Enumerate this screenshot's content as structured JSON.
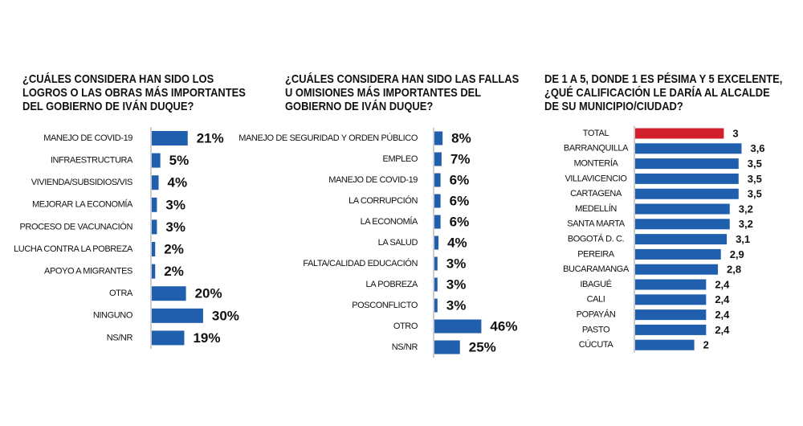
{
  "chart_data": [
    {
      "type": "bar",
      "orientation": "horizontal",
      "title": "¿CUÁLES CONSIDERA HAN SIDO LOS LOGROS O LAS OBRAS MÁS IMPORTANTES DEL GOBIERNO DE IVÁN DUQUE?",
      "categories": [
        "MANEJO DE COVID-19",
        "INFRAESTRUCTURA",
        "VIVIENDA/SUBSIDIOS/VIS",
        "MEJORAR LA ECONOMÍA",
        "PROCESO DE VACUNACIÓN",
        "LUCHA CONTRA LA POBREZA",
        "APOYO A MIGRANTES",
        "OTRA",
        "NINGUNO",
        "NS/NR"
      ],
      "values": [
        21,
        5,
        4,
        3,
        3,
        2,
        2,
        20,
        30,
        19
      ],
      "value_labels": [
        "21%",
        "5%",
        "4%",
        "3%",
        "3%",
        "2%",
        "2%",
        "20%",
        "30%",
        "19%"
      ],
      "color": "#1f5fad"
    },
    {
      "type": "bar",
      "orientation": "horizontal",
      "title": "¿CUÁLES CONSIDERA HAN SIDO LAS FALLAS U OMISIONES MÁS IMPORTANTES DEL GOBIERNO DE IVÁN DUQUE?",
      "categories": [
        "MANEJO DE SEGURIDAD Y ORDEN PÚBLICO",
        "EMPLEO",
        "MANEJO DE COVID-19",
        "LA CORRUPCIÓN",
        "LA ECONOMÍA",
        "LA SALUD",
        "FALTA/CALIDAD EDUCACIÓN",
        "LA POBREZA",
        "POSCONFLICTO",
        "OTRO",
        "NS/NR"
      ],
      "values": [
        8,
        7,
        6,
        6,
        6,
        4,
        3,
        3,
        3,
        46,
        25
      ],
      "value_labels": [
        "8%",
        "7%",
        "6%",
        "6%",
        "6%",
        "4%",
        "3%",
        "3%",
        "3%",
        "46%",
        "25%"
      ],
      "color": "#1f5fad"
    },
    {
      "type": "bar",
      "orientation": "horizontal",
      "title": "DE 1 A 5, DONDE 1 ES PÉSIMA Y 5 EXCELENTE, ¿QUÉ CALIFICACIÓN LE DARÍA AL ALCALDE DE SU MUNICIPIO/CIUDAD?",
      "categories": [
        "TOTAL",
        "BARRANQUILLA",
        "MONTERÍA",
        "VILLAVICENCIO",
        "CARTAGENA",
        "MEDELLÍN",
        "SANTA MARTA",
        "BOGOTÁ D. C.",
        "PEREIRA",
        "BUCARAMANGA",
        "IBAGUÉ",
        "CALI",
        "POPAYÁN",
        "PASTO",
        "CÚCUTA"
      ],
      "values": [
        3,
        3.6,
        3.5,
        3.5,
        3.5,
        3.2,
        3.2,
        3.1,
        2.9,
        2.8,
        2.4,
        2.4,
        2.4,
        2.4,
        2
      ],
      "value_labels": [
        "3",
        "3,6",
        "3,5",
        "3,5",
        "3,5",
        "3,2",
        "3,2",
        "3,1",
        "2,9",
        "2,8",
        "2,4",
        "2,4",
        "2,4",
        "2,4",
        "2"
      ],
      "colors": [
        "#d0202e",
        "#1f5fad",
        "#1f5fad",
        "#1f5fad",
        "#1f5fad",
        "#1f5fad",
        "#1f5fad",
        "#1f5fad",
        "#1f5fad",
        "#1f5fad",
        "#1f5fad",
        "#1f5fad",
        "#1f5fad",
        "#1f5fad",
        "#1f5fad"
      ]
    }
  ]
}
